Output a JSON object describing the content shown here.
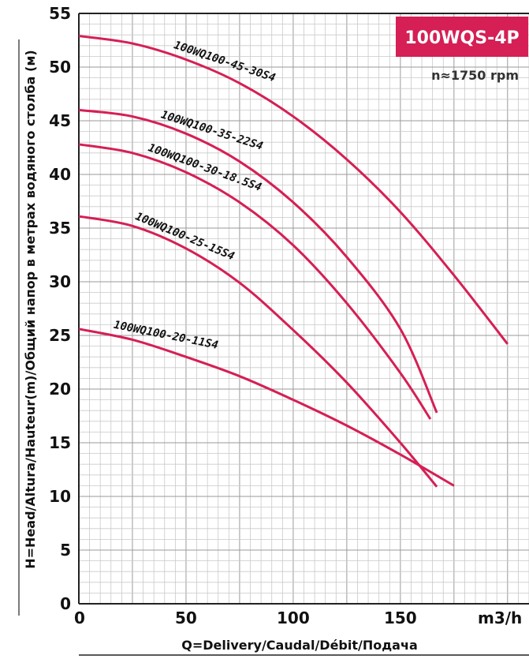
{
  "chart_data": {
    "type": "line",
    "title": "100WQS-4P",
    "subtitle": "n≈1750 rpm",
    "xlabel": "Q=Delivery/Caudal/Débit/Подача",
    "xunit": "m3/h",
    "ylabel": "H=Head/Altura/Hauteur(m)/Общий напор в метрах водяного столба (м)",
    "xlim": [
      0,
      210
    ],
    "ylim": [
      0,
      55
    ],
    "xticks": [
      0,
      50,
      100,
      150
    ],
    "yticks": [
      0,
      5,
      10,
      15,
      20,
      25,
      30,
      35,
      40,
      45,
      50,
      55
    ],
    "grid": true,
    "series": [
      {
        "name": "100WQ100-45-30S4",
        "x": [
          0,
          25,
          50,
          75,
          100,
          125,
          150,
          175,
          200
        ],
        "y": [
          52.9,
          52.2,
          50.7,
          48.5,
          45.4,
          41.4,
          36.5,
          30.6,
          24.2
        ]
      },
      {
        "name": "100WQ100-35-22S4",
        "x": [
          0,
          25,
          50,
          75,
          100,
          125,
          150,
          167
        ],
        "y": [
          46.0,
          45.4,
          43.8,
          41.2,
          37.4,
          32.3,
          25.6,
          17.8
        ]
      },
      {
        "name": "100WQ100-30-18.5S4",
        "x": [
          0,
          25,
          50,
          75,
          100,
          125,
          150,
          164
        ],
        "y": [
          42.8,
          42.0,
          40.2,
          37.4,
          33.4,
          28.0,
          21.5,
          17.2
        ]
      },
      {
        "name": "100WQ100-25-15S4",
        "x": [
          0,
          25,
          50,
          75,
          100,
          125,
          150,
          167
        ],
        "y": [
          36.1,
          35.2,
          33.1,
          29.9,
          25.5,
          20.6,
          15.0,
          10.9
        ]
      },
      {
        "name": "100WQ100-20-11S4",
        "x": [
          0,
          25,
          50,
          75,
          100,
          125,
          150,
          175
        ],
        "y": [
          25.6,
          24.6,
          23.0,
          21.2,
          19.0,
          16.6,
          13.9,
          11.0
        ]
      }
    ]
  }
}
